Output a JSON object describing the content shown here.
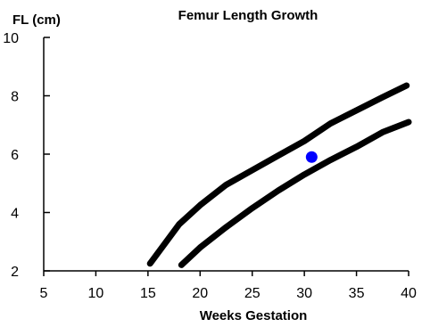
{
  "chart_data": {
    "type": "line",
    "title": "Femur Length Growth",
    "xlabel": "Weeks Gestation",
    "ylabel": "FL (cm)",
    "xlim": [
      5,
      40
    ],
    "ylim": [
      2,
      10
    ],
    "x_ticks": [
      "5",
      "10",
      "15",
      "20",
      "25",
      "30",
      "35",
      "40"
    ],
    "y_ticks": [
      "2",
      "4",
      "6",
      "8",
      "10"
    ],
    "grid": false,
    "legend": "none",
    "series": [
      {
        "color": "#000000",
        "x": [
          15.2,
          18,
          20,
          22.5,
          25,
          27.5,
          30,
          32.5,
          35,
          37.5,
          39.8
        ],
        "y": [
          2.25,
          3.6,
          4.25,
          4.95,
          5.45,
          5.95,
          6.45,
          7.05,
          7.5,
          7.95,
          8.35
        ]
      },
      {
        "color": "#000000",
        "x": [
          18.2,
          20,
          22.5,
          25,
          27.5,
          30,
          32.5,
          35,
          37.5,
          40
        ],
        "y": [
          2.2,
          2.8,
          3.5,
          4.15,
          4.75,
          5.3,
          5.8,
          6.25,
          6.75,
          7.1
        ]
      }
    ],
    "points": [
      {
        "x": 30.7,
        "y": 5.9,
        "color": "#0000ff"
      }
    ]
  }
}
